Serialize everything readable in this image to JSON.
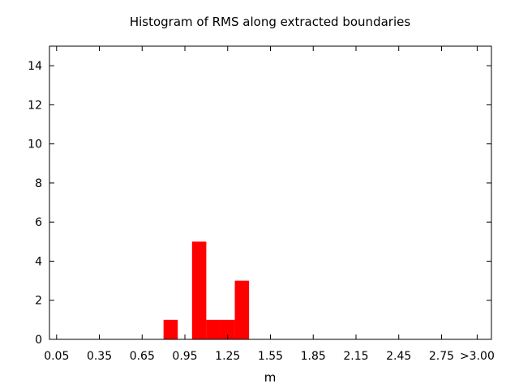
{
  "chart_data": {
    "type": "bar",
    "title": "Histogram of RMS along extracted boundaries",
    "xlabel": "m",
    "ylabel": "",
    "bin_width": 0.1,
    "xlim": [
      0.0,
      3.1
    ],
    "ylim": [
      0,
      15
    ],
    "x_ticks": [
      {
        "value": 0.05,
        "label": "0.05"
      },
      {
        "value": 0.35,
        "label": "0.35"
      },
      {
        "value": 0.65,
        "label": "0.65"
      },
      {
        "value": 0.95,
        "label": "0.95"
      },
      {
        "value": 1.25,
        "label": "1.25"
      },
      {
        "value": 1.55,
        "label": "1.55"
      },
      {
        "value": 1.85,
        "label": "1.85"
      },
      {
        "value": 2.15,
        "label": "2.15"
      },
      {
        "value": 2.45,
        "label": "2.45"
      },
      {
        "value": 2.75,
        "label": "2.75"
      },
      {
        "value": 3.0,
        "label": ">3.00"
      }
    ],
    "y_ticks": [
      0,
      2,
      4,
      6,
      8,
      10,
      12,
      14
    ],
    "bins": [
      {
        "x": 0.85,
        "value": 1
      },
      {
        "x": 1.05,
        "value": 5
      },
      {
        "x": 1.15,
        "value": 1
      },
      {
        "x": 1.25,
        "value": 1
      },
      {
        "x": 1.35,
        "value": 3
      }
    ],
    "bar_color": "#ff0000",
    "grid": false,
    "legend": "none"
  }
}
